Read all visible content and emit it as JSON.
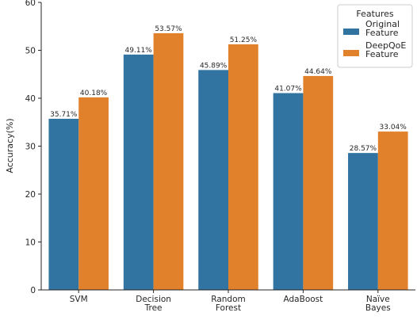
{
  "chart_data": {
    "type": "bar",
    "categories": [
      [
        "SVM"
      ],
      [
        "Decision",
        "Tree"
      ],
      [
        "Random",
        "Forest"
      ],
      [
        "AdaBoost"
      ],
      [
        "Naïve",
        "Bayes"
      ]
    ],
    "series": [
      {
        "name": [
          "Original",
          "Feature"
        ],
        "color": "#3274a1",
        "values": [
          35.71,
          49.11,
          45.89,
          41.07,
          28.57
        ],
        "labels": [
          "35.71%",
          "49.11%",
          "45.89%",
          "41.07%",
          "28.57%"
        ]
      },
      {
        "name": [
          "DeepQoE",
          "Feature"
        ],
        "color": "#e1812c",
        "values": [
          40.18,
          53.57,
          51.25,
          44.64,
          33.04
        ],
        "labels": [
          "40.18%",
          "53.57%",
          "51.25%",
          "44.64%",
          "33.04%"
        ]
      }
    ],
    "ylabel": "Accuracy(%)",
    "xlabel": "",
    "ylim": [
      0,
      60
    ],
    "yticks": [
      0,
      10,
      20,
      30,
      40,
      50,
      60
    ],
    "legend": {
      "title": "Features",
      "placement": "top-right"
    },
    "grid": false
  }
}
